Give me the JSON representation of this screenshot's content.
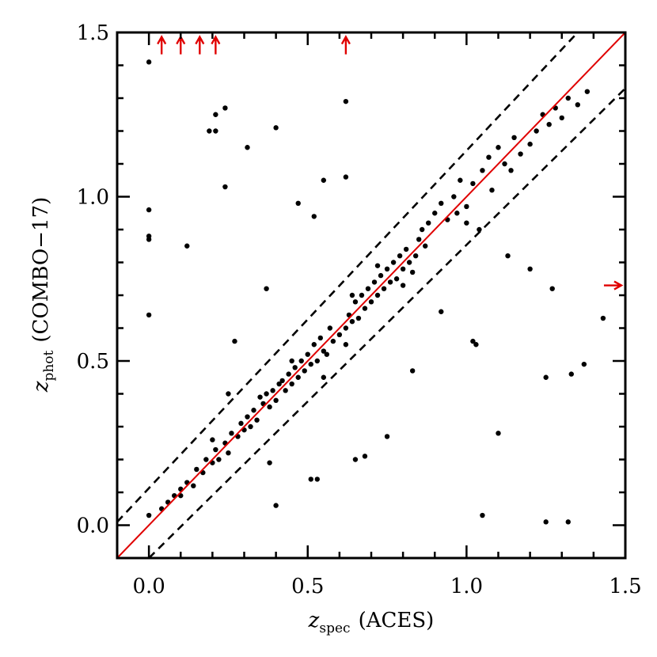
{
  "chart_data": {
    "type": "scatter",
    "xlabel": {
      "var": "z",
      "sub": "spec",
      "text": "(ACES)"
    },
    "ylabel": {
      "var": "z",
      "sub": "phot",
      "text": "(COMBO−17)"
    },
    "xlim": [
      -0.1,
      1.5
    ],
    "ylim": [
      -0.1,
      1.5
    ],
    "xticks": [
      {
        "value": 0,
        "label": "0.0"
      },
      {
        "value": 0.5,
        "label": "0.5"
      },
      {
        "value": 1,
        "label": "1.0"
      },
      {
        "value": 1.5,
        "label": "1.5"
      }
    ],
    "yticks": [
      {
        "value": 0,
        "label": "0.0"
      },
      {
        "value": 0.5,
        "label": "0.5"
      },
      {
        "value": 1,
        "label": "1.0"
      },
      {
        "value": 1.5,
        "label": "1.5"
      }
    ],
    "xminorticks": [
      -0.1,
      0.1,
      0.2,
      0.3,
      0.4,
      0.6,
      0.7,
      0.8,
      0.9,
      1.1,
      1.2,
      1.3,
      1.4
    ],
    "yminorticks": [
      -0.1,
      0.1,
      0.2,
      0.3,
      0.4,
      0.6,
      0.7,
      0.8,
      0.9,
      1.1,
      1.2,
      1.3,
      1.4
    ],
    "series": [
      {
        "color": "#000000",
        "x": [
          0.04,
          0.06,
          0.08,
          0.1,
          0.12,
          0.14,
          0.15,
          0.17,
          0.18,
          0.2,
          0.21,
          0.22,
          0.24,
          0.25,
          0.26,
          0.28,
          0.29,
          0.3,
          0.31,
          0.32,
          0.33,
          0.34,
          0.36,
          0.37,
          0.38,
          0.39,
          0.4,
          0.41,
          0.42,
          0.43,
          0.44,
          0.45,
          0.46,
          0.47,
          0.48,
          0.49,
          0.5,
          0.51,
          0.52,
          0.53,
          0.54,
          0.55,
          0.56,
          0.57,
          0.58,
          0.6,
          0.62,
          0.62,
          0.63,
          0.64,
          0.65,
          0.66,
          0.67,
          0.68,
          0.69,
          0.7,
          0.71,
          0.72,
          0.73,
          0.74,
          0.75,
          0.76,
          0.77,
          0.78,
          0.79,
          0.8,
          0.81,
          0.82,
          0.83,
          0.84,
          0.85,
          0.86,
          0.87,
          0.88,
          0.9,
          0.92,
          0.94,
          0.96,
          0.97,
          0.98,
          1.0,
          1.0,
          1.02,
          1.04,
          1.05,
          1.07,
          1.08,
          1.1,
          1.12,
          1.14,
          1.15,
          1.17,
          1.2,
          1.22,
          1.24,
          1.26,
          1.28,
          1.3,
          1.32,
          1.35,
          1.38,
          0.64,
          0.55,
          0.45,
          0.35,
          0.2,
          0.1,
          0.72,
          0.8,
          0,
          0,
          0,
          0,
          0,
          0,
          0.12,
          0.19,
          0.21,
          0.21,
          0.24,
          0.24,
          0.31,
          0.4,
          0.47,
          0.62,
          0.62,
          0.55,
          0.52,
          0.27,
          0.25,
          0.38,
          0.4,
          0.51,
          0.53,
          0.65,
          0.68,
          0.75,
          1.03,
          1.02,
          1.1,
          1.05,
          1.25,
          1.32,
          1.33,
          1.37,
          1.43,
          1.25,
          1.13,
          1.2,
          1.27,
          0.37,
          0.83,
          0.92
        ],
        "y": [
          0.05,
          0.07,
          0.09,
          0.11,
          0.13,
          0.12,
          0.17,
          0.16,
          0.2,
          0.19,
          0.23,
          0.2,
          0.25,
          0.22,
          0.28,
          0.27,
          0.31,
          0.29,
          0.33,
          0.3,
          0.35,
          0.32,
          0.37,
          0.4,
          0.36,
          0.41,
          0.38,
          0.43,
          0.44,
          0.41,
          0.46,
          0.43,
          0.48,
          0.45,
          0.5,
          0.47,
          0.52,
          0.49,
          0.55,
          0.5,
          0.57,
          0.53,
          0.52,
          0.6,
          0.56,
          0.58,
          0.6,
          0.55,
          0.64,
          0.62,
          0.68,
          0.63,
          0.7,
          0.66,
          0.72,
          0.68,
          0.74,
          0.7,
          0.76,
          0.72,
          0.78,
          0.74,
          0.8,
          0.75,
          0.82,
          0.78,
          0.84,
          0.8,
          0.77,
          0.82,
          0.87,
          0.9,
          0.85,
          0.92,
          0.95,
          0.98,
          0.93,
          1.0,
          0.95,
          1.05,
          0.97,
          0.92,
          1.04,
          0.9,
          1.08,
          1.12,
          1.02,
          1.15,
          1.1,
          1.08,
          1.18,
          1.13,
          1.16,
          1.2,
          1.25,
          1.22,
          1.27,
          1.24,
          1.3,
          1.28,
          1.32,
          0.7,
          0.45,
          0.5,
          0.39,
          0.26,
          0.09,
          0.79,
          0.73,
          1.41,
          0.96,
          0.88,
          0.87,
          0.64,
          0.03,
          0.85,
          1.2,
          1.2,
          1.25,
          1.27,
          1.03,
          1.15,
          1.21,
          0.98,
          1.29,
          1.06,
          1.05,
          0.94,
          0.56,
          0.4,
          0.19,
          0.06,
          0.14,
          0.14,
          0.2,
          0.21,
          0.27,
          0.55,
          0.56,
          0.28,
          0.03,
          0.01,
          0.01,
          0.46,
          0.49,
          0.63,
          0.45,
          0.82,
          0.78,
          0.72,
          0.72,
          0.47,
          0.65
        ]
      }
    ],
    "reference_line": {
      "x": [
        -0.1,
        1.5
      ],
      "y": [
        -0.1,
        1.5
      ],
      "color": "#e00000"
    },
    "dashed_lines": [
      {
        "x": [
          -0.1,
          1.35
        ],
        "y": [
          0.01,
          1.5
        ],
        "color": "#000000"
      },
      {
        "x": [
          0.0,
          1.5
        ],
        "y": [
          -0.1,
          1.33
        ],
        "color": "#000000"
      }
    ],
    "upper_limits": {
      "x": [
        0.04,
        0.1,
        0.16,
        0.21,
        0.62
      ],
      "y": [
        1.46,
        1.46,
        1.46,
        1.46,
        1.46
      ],
      "color": "#e00000"
    },
    "right_limits": {
      "x": [
        1.46
      ],
      "y": [
        0.73
      ],
      "color": "#e00000"
    }
  }
}
